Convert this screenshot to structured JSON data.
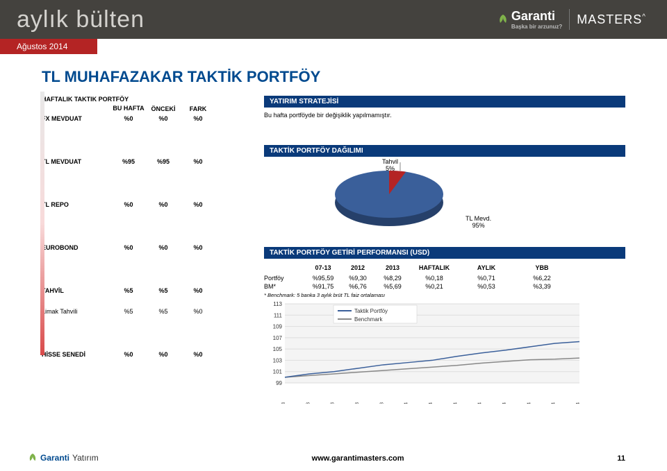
{
  "header": {
    "brand": "aylık bülten",
    "garanti": "Garanti",
    "garanti_sub": "Başka bir arzunuz?",
    "masters": "MASTERS"
  },
  "date": "Ağustos 2014",
  "title": "TL MUHAFAZAKAR TAKTİK PORTFÖY",
  "left_table": {
    "section_title": "HAFTALIK TAKTIK PORTFÖY",
    "col_bu_hafta": "BU HAFTA",
    "col_onceki": "ÖNCEKİ",
    "col_fark": "FARK",
    "rows": [
      {
        "label": "FX MEVDUAT",
        "bu": "%0",
        "on": "%0",
        "fr": "%0",
        "bold": true,
        "gap": "lg"
      },
      {
        "label": "TL MEVDUAT",
        "bu": "%95",
        "on": "%95",
        "fr": "%0",
        "bold": true,
        "gap": "lg"
      },
      {
        "label": "TL REPO",
        "bu": "%0",
        "on": "%0",
        "fr": "%0",
        "bold": true,
        "gap": "lg"
      },
      {
        "label": "EUROBOND",
        "bu": "%0",
        "on": "%0",
        "fr": "%0",
        "bold": true,
        "gap": "lg"
      },
      {
        "label": "TAHVİL",
        "bu": "%5",
        "on": "%5",
        "fr": "%0",
        "bold": true,
        "gap": "sm"
      },
      {
        "label": "Limak Tahvili",
        "bu": "%5",
        "on": "%5",
        "fr": "%0",
        "bold": false,
        "gap": "lg"
      },
      {
        "label": "HİSSE SENEDİ",
        "bu": "%0",
        "on": "%0",
        "fr": "%0",
        "bold": true,
        "gap": ""
      }
    ]
  },
  "strategy": {
    "title": "YATIRIM STRATEJİSİ",
    "text": "Bu hafta portföyde bir değişiklik yapılmamıştır."
  },
  "pie": {
    "title": "TAKTİK PORTFÖY DAĞILIMI",
    "slice1_label": "Tahvil",
    "slice1_pct": "5%",
    "slice2_label": "TL Mevd.",
    "slice2_pct": "95%",
    "slice1_color": "#b42424",
    "slice2_color": "#3a5f9a"
  },
  "perf": {
    "title": "TAKTİK PORTFÖY GETİRİ PERFORMANSI (USD)",
    "cols": [
      "",
      "07-13",
      "2012",
      "2013",
      "HAFTALIK",
      "AYLIK",
      "YBB"
    ],
    "rows": [
      [
        "Portföy",
        "%95,59",
        "%9,30",
        "%8,29",
        "%0,18",
        "%0,71",
        "%6,22"
      ],
      [
        "BM*",
        "%91,75",
        "%6,76",
        "%5,69",
        "%0,21",
        "%0,53",
        "%3,39"
      ]
    ],
    "note": "* Benchmark: 5 banka 3 aylık brüt TL faiz ortalaması"
  },
  "line_chart": {
    "legend": [
      "Taktik Portföy",
      "Benchmark"
    ],
    "colors": [
      "#3a5f9a",
      "#888888"
    ],
    "xlabels": [
      "08.13",
      "09.13",
      "10.13",
      "11.13",
      "12.13",
      "01.14",
      "02.14",
      "03.14",
      "04.14",
      "05.14",
      "06.14",
      "07.14",
      "07.14"
    ],
    "ymin": 99,
    "ymax": 113,
    "ystep": 2,
    "series1": [
      100,
      100.6,
      101.0,
      101.6,
      102.2,
      102.6,
      103.0,
      103.7,
      104.3,
      104.8,
      105.4,
      106.0,
      106.3
    ],
    "series2": [
      100,
      100.3,
      100.6,
      100.9,
      101.2,
      101.5,
      101.8,
      102.1,
      102.5,
      102.8,
      103.1,
      103.2,
      103.4
    ],
    "bg": "#f4f4f4",
    "grid": "#dddddd"
  },
  "footer": {
    "logo": "Garanti",
    "logo2": "Yatırım",
    "url": "www.garantimasters.com",
    "page": "11"
  }
}
